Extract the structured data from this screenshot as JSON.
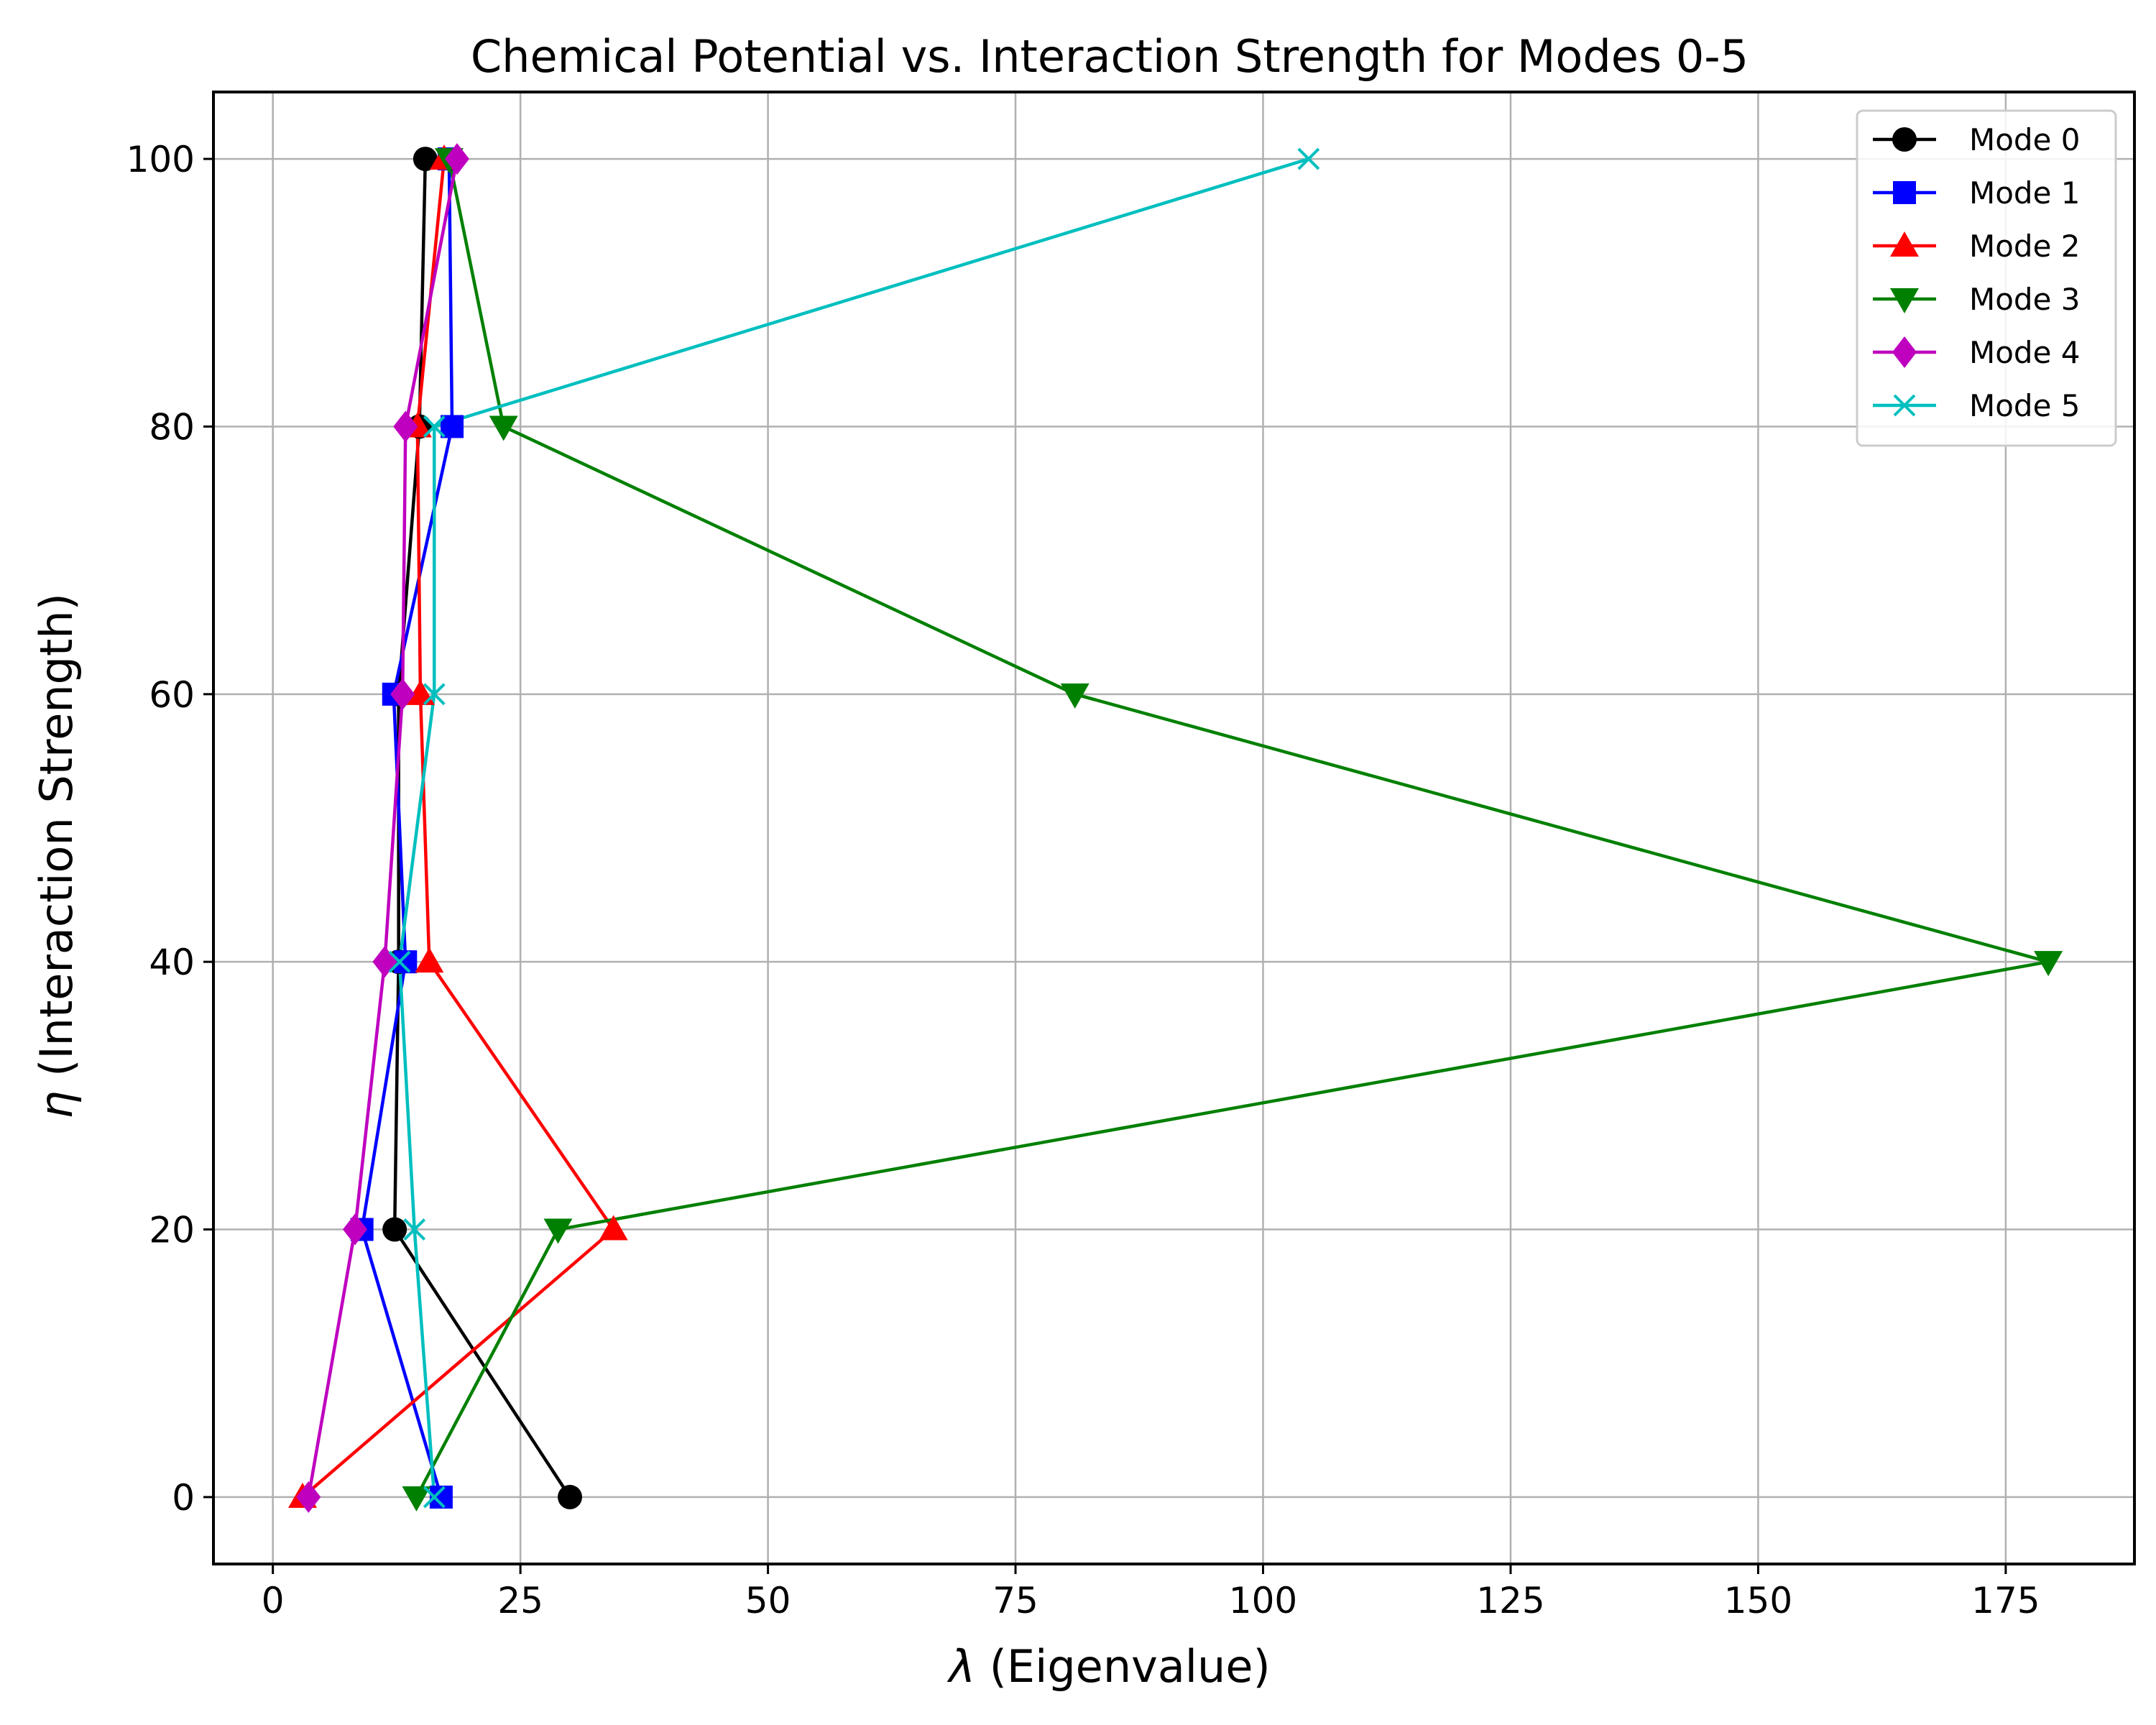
{
  "chart_data": {
    "type": "line",
    "title": "Chemical Potential vs. Interaction Strength for Modes 0-5",
    "xlabel_symbol": "λ",
    "xlabel_text": " (Eigenvalue)",
    "ylabel_symbol": "η",
    "ylabel_text": " (Interaction Strength)",
    "xlim": [
      -6,
      188
    ],
    "ylim": [
      -5,
      105
    ],
    "xticks": [
      0,
      25,
      50,
      75,
      100,
      125,
      150,
      175
    ],
    "yticks": [
      0,
      20,
      40,
      60,
      80,
      100
    ],
    "grid": true,
    "legend_position": "top-right",
    "y": [
      0,
      20,
      40,
      60,
      80,
      100
    ],
    "series": [
      {
        "name": "Mode 0",
        "color": "#000000",
        "marker": "circle",
        "x": [
          30.0,
          12.3,
          12.7,
          12.7,
          14.8,
          15.4
        ]
      },
      {
        "name": "Mode 1",
        "color": "#0000ff",
        "marker": "square",
        "x": [
          17.0,
          9.0,
          13.4,
          12.2,
          18.1,
          17.8
        ]
      },
      {
        "name": "Mode 2",
        "color": "#ff0000",
        "marker": "triangle-up",
        "x": [
          3.0,
          34.4,
          15.8,
          14.9,
          14.6,
          17.3
        ]
      },
      {
        "name": "Mode 3",
        "color": "#008000",
        "marker": "triangle-down",
        "x": [
          14.5,
          28.8,
          179.3,
          81.0,
          23.3,
          17.8
        ]
      },
      {
        "name": "Mode 4",
        "color": "#bf00bf",
        "marker": "diamond",
        "x": [
          3.6,
          8.3,
          11.3,
          13.1,
          13.4,
          18.6
        ]
      },
      {
        "name": "Mode 5",
        "color": "#00bfbf",
        "marker": "x",
        "x": [
          16.3,
          14.3,
          12.8,
          16.3,
          16.3,
          104.6
        ]
      }
    ]
  }
}
